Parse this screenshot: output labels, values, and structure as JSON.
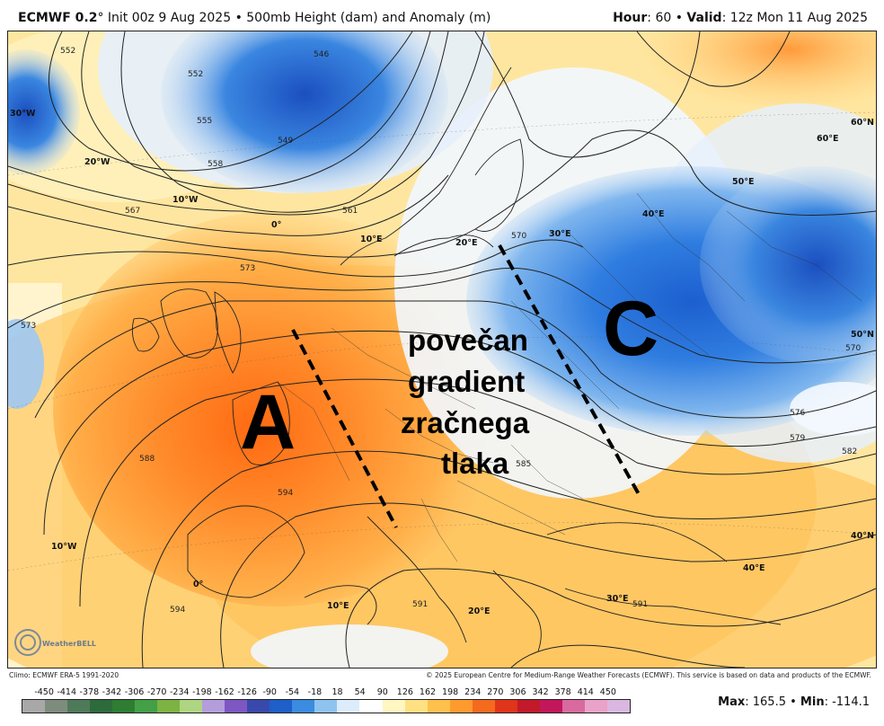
{
  "header": {
    "model": "ECMWF 0.2",
    "init": "° Init 00z 9 Aug 2025 • 500mb Height (dam) and Anomaly (m)",
    "hour_label": "Hour",
    "hour_value": ": 60 • ",
    "valid_label": "Valid",
    "valid_value": ": 12z Mon 11 Aug 2025"
  },
  "map_labels": {
    "high": "A",
    "low": "C",
    "annotation": [
      "povečan",
      "gradient",
      "zračnega",
      "tlaka"
    ],
    "longitudes": [
      "30°W",
      "20°W",
      "10°W",
      "0°",
      "10°E",
      "20°E",
      "30°E",
      "40°E",
      "50°E",
      "60°E",
      "10°W",
      "0°",
      "10°E",
      "20°E",
      "30°E",
      "40°E"
    ],
    "latitudes": [
      "60°N",
      "50°N",
      "40°N"
    ],
    "contours": [
      "546",
      "549",
      "552",
      "555",
      "558",
      "561",
      "567",
      "570",
      "573",
      "576",
      "579",
      "582",
      "585",
      "588",
      "591",
      "594"
    ],
    "logo": "WeatherBELL"
  },
  "footer": {
    "climo": "Climo: ECMWF ERA-5 1991-2020",
    "copyright": "© 2025 European Centre for Medium-Range Weather Forecasts (ECMWF). This service is based on data and products of the ECMWF."
  },
  "colorbar": {
    "ticks": [
      "-450",
      "-414",
      "-378",
      "-342",
      "-306",
      "-270",
      "-234",
      "-198",
      "-162",
      "-126",
      "-90",
      "-54",
      "-18",
      "18",
      "54",
      "90",
      "126",
      "162",
      "198",
      "234",
      "270",
      "306",
      "342",
      "378",
      "414",
      "450"
    ],
    "colors": [
      "#a8a8a8",
      "#7e8c7e",
      "#4f7a5a",
      "#2d6b3d",
      "#2e7d32",
      "#43a047",
      "#7cb342",
      "#aed581",
      "#b39ddb",
      "#7e57c2",
      "#3949ab",
      "#1e5fc8",
      "#3b8be0",
      "#8ec3f0",
      "#dcecfb",
      "#ffffff",
      "#fff6c2",
      "#ffe082",
      "#ffc04d",
      "#ff9a2e",
      "#f46a1e",
      "#e0351a",
      "#c21a2a",
      "#c2185b",
      "#d86aa0",
      "#e9a2c8",
      "#d9b7e0"
    ],
    "max_label": "Max",
    "max_value": ": 165.5 • ",
    "min_label": "Min",
    "min_value": ": -114.1"
  }
}
